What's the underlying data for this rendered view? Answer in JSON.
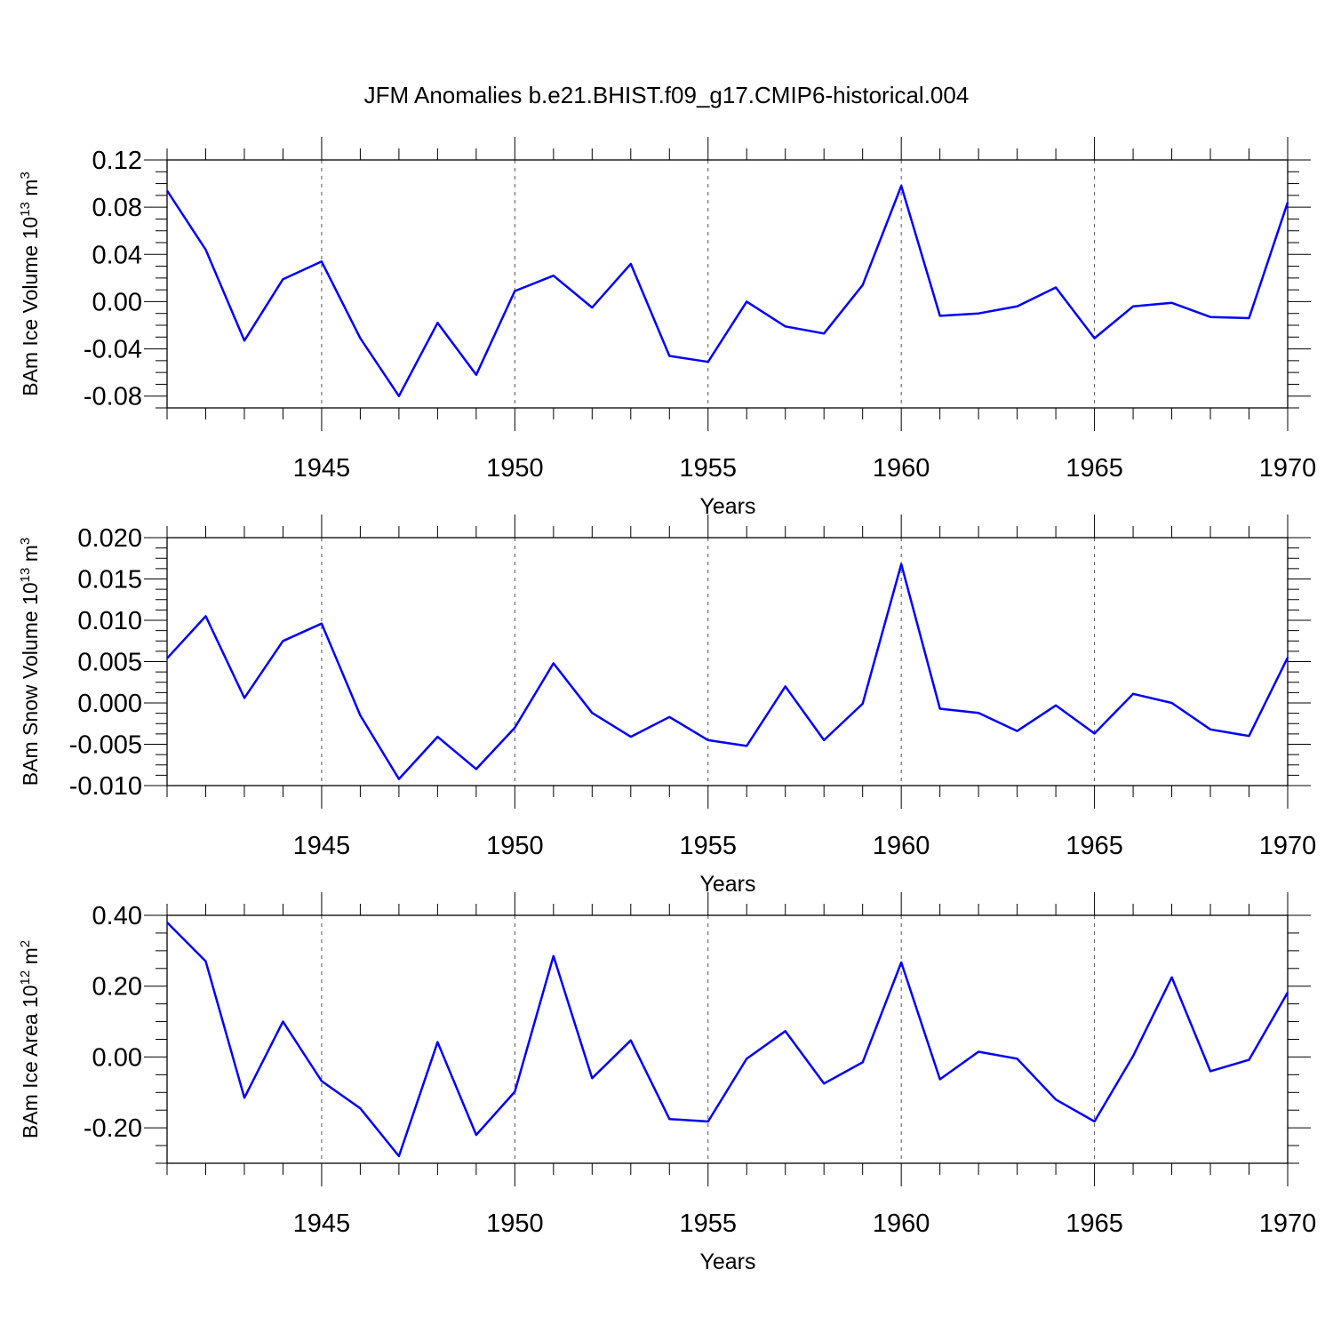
{
  "figure_title": "JFM Anomalies b.e21.BHIST.f09_g17.CMIP6-historical.004",
  "colors": {
    "line": "#0000ff",
    "axis": "#000000",
    "grid": "#555555"
  },
  "chart_data": [
    {
      "type": "line",
      "title": "JFM Anomalies b.e21.BHIST.f09_g17.CMIP6-historical.004",
      "ylabel_main": "BAm Ice Volume 10",
      "ylabel_exp": "13",
      "ylabel_unit": "m",
      "ylabel_unit_exp": "3",
      "xlabel": "Years",
      "xlim": [
        1941,
        1970
      ],
      "ylim": [
        -0.09,
        0.12
      ],
      "yticks": [
        0.12,
        0.08,
        0.04,
        0.0,
        -0.04,
        -0.08
      ],
      "ytick_labels": [
        "0.12",
        "0.08",
        "0.04",
        "0.00",
        "-0.04",
        "-0.08"
      ],
      "xticks": [
        1945,
        1950,
        1955,
        1960,
        1965,
        1970
      ],
      "xtick_labels": [
        "1945",
        "1950",
        "1955",
        "1960",
        "1965",
        "1970"
      ],
      "x": [
        1941,
        1942,
        1943,
        1944,
        1945,
        1946,
        1947,
        1948,
        1949,
        1950,
        1951,
        1952,
        1953,
        1954,
        1955,
        1956,
        1957,
        1958,
        1959,
        1960,
        1961,
        1962,
        1963,
        1964,
        1965,
        1966,
        1967,
        1968,
        1969,
        1970
      ],
      "values": [
        0.094,
        0.044,
        -0.033,
        0.019,
        0.034,
        -0.031,
        -0.08,
        -0.018,
        -0.062,
        0.009,
        0.022,
        -0.005,
        0.032,
        -0.046,
        -0.051,
        0.0,
        -0.021,
        -0.027,
        0.014,
        0.098,
        -0.012,
        -0.01,
        -0.004,
        0.012,
        -0.031,
        -0.004,
        -0.001,
        -0.013,
        -0.014,
        0.084
      ]
    },
    {
      "type": "line",
      "ylabel_main": "BAm Snow Volume 10",
      "ylabel_exp": "13",
      "ylabel_unit": "m",
      "ylabel_unit_exp": "3",
      "xlabel": "Years",
      "xlim": [
        1941,
        1970
      ],
      "ylim": [
        -0.01,
        0.02
      ],
      "yticks": [
        0.02,
        0.015,
        0.01,
        0.005,
        0.0,
        -0.005,
        -0.01
      ],
      "ytick_labels": [
        "0.020",
        "0.015",
        "0.010",
        "0.005",
        "0.000",
        "-0.005",
        "-0.010"
      ],
      "xticks": [
        1945,
        1950,
        1955,
        1960,
        1965,
        1970
      ],
      "xtick_labels": [
        "1945",
        "1950",
        "1955",
        "1960",
        "1965",
        "1970"
      ],
      "x": [
        1941,
        1942,
        1943,
        1944,
        1945,
        1946,
        1947,
        1948,
        1949,
        1950,
        1951,
        1952,
        1953,
        1954,
        1955,
        1956,
        1957,
        1958,
        1959,
        1960,
        1961,
        1962,
        1963,
        1964,
        1965,
        1966,
        1967,
        1968,
        1969,
        1970
      ],
      "values": [
        0.0054,
        0.0105,
        0.0006,
        0.0075,
        0.0096,
        -0.0015,
        -0.0092,
        -0.0041,
        -0.008,
        -0.003,
        0.0048,
        -0.0012,
        -0.0041,
        -0.0017,
        -0.0045,
        -0.0052,
        0.002,
        -0.0045,
        -0.0001,
        0.0168,
        -0.0007,
        -0.0012,
        -0.0034,
        -0.0003,
        -0.0037,
        0.0011,
        0.0,
        -0.0032,
        -0.004,
        0.0055
      ]
    },
    {
      "type": "line",
      "ylabel_main": "BAm Ice Area 10",
      "ylabel_exp": "12",
      "ylabel_unit": "m",
      "ylabel_unit_exp": "2",
      "xlabel": "Years",
      "xlim": [
        1941,
        1970
      ],
      "ylim": [
        -0.3,
        0.4
      ],
      "yticks": [
        0.4,
        0.2,
        0.0,
        -0.2
      ],
      "ytick_labels": [
        "0.40",
        "0.20",
        "0.00",
        "-0.20"
      ],
      "xticks": [
        1945,
        1950,
        1955,
        1960,
        1965,
        1970
      ],
      "xtick_labels": [
        "1945",
        "1950",
        "1955",
        "1960",
        "1965",
        "1970"
      ],
      "x": [
        1941,
        1942,
        1943,
        1944,
        1945,
        1946,
        1947,
        1948,
        1949,
        1950,
        1951,
        1952,
        1953,
        1954,
        1955,
        1956,
        1957,
        1958,
        1959,
        1960,
        1961,
        1962,
        1963,
        1964,
        1965,
        1966,
        1967,
        1968,
        1969,
        1970
      ],
      "values": [
        0.38,
        0.27,
        -0.115,
        0.1,
        -0.068,
        -0.145,
        -0.28,
        0.042,
        -0.22,
        -0.098,
        0.285,
        -0.06,
        0.047,
        -0.175,
        -0.182,
        -0.005,
        0.073,
        -0.075,
        -0.015,
        0.267,
        -0.063,
        0.015,
        -0.005,
        -0.12,
        -0.182,
        0.003,
        0.225,
        -0.04,
        -0.008,
        0.182
      ]
    }
  ]
}
